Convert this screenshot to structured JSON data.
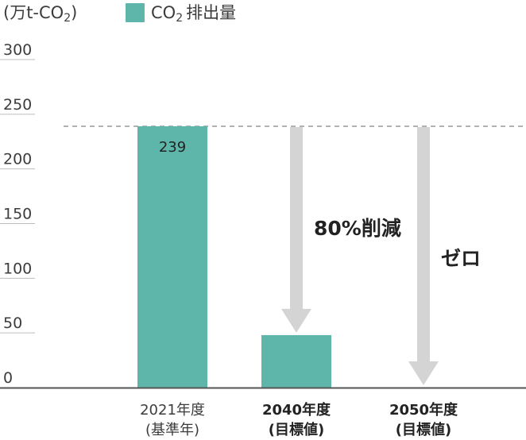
{
  "unit_label": "(万t-CO",
  "unit_sub": "2",
  "unit_close": ")",
  "legend": {
    "label": "CO",
    "label_sub": "2",
    "label_rest": "排出量"
  },
  "colors": {
    "bar": "#5db6a9",
    "arrow": "#d4d4d4",
    "baseline": "#999999",
    "axis": "#555555",
    "grid": "#bdbdbd"
  },
  "chart_data": {
    "type": "bar",
    "ylim": [
      0,
      300
    ],
    "yticks": [
      0,
      50,
      100,
      150,
      200,
      250,
      300
    ],
    "ytick_labels": [
      "0",
      "50",
      "100",
      "150",
      "200",
      "250",
      "300"
    ],
    "grid": false,
    "categories": [
      {
        "line1": "2021年度",
        "line2": "(基準年)",
        "bold": false
      },
      {
        "line1": "2040年度",
        "line2": "(目標値)",
        "bold": true
      },
      {
        "line1": "2050年度",
        "line2": "(目標値)",
        "bold": true
      }
    ],
    "values": [
      239,
      48,
      0
    ],
    "data_labels": [
      "239",
      "",
      ""
    ],
    "reference_line": {
      "value": 239,
      "style": "dashed"
    },
    "annotations": [
      {
        "text": "80%削減",
        "category_index": 1,
        "from": 239,
        "to": 48
      },
      {
        "text": "ゼロ",
        "category_index": 2,
        "from": 239,
        "to": 0
      }
    ]
  }
}
